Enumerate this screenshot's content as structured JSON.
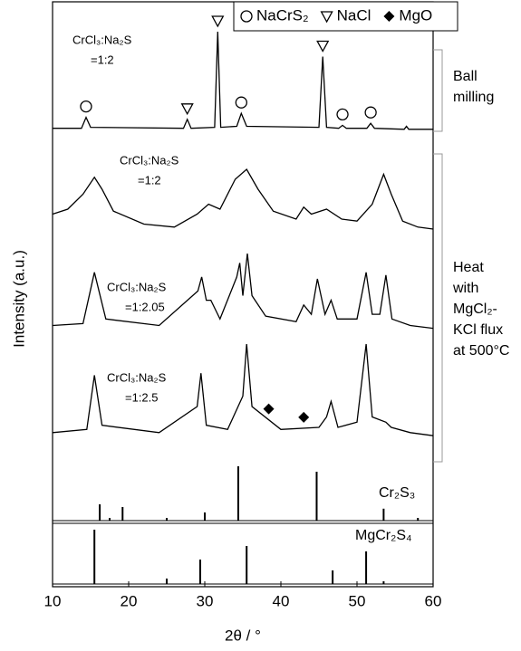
{
  "chart_data": {
    "type": "line",
    "xlabel": "2θ / °",
    "ylabel": "Intensity (a.u.)",
    "xlim": [
      10,
      60
    ],
    "xticks": [
      10,
      20,
      30,
      40,
      50,
      60
    ],
    "color": "#000000",
    "phases": [
      {
        "name": "NaCrS₂",
        "symbol": "circle"
      },
      {
        "name": "NaCl",
        "symbol": "triangle"
      },
      {
        "name": "MgO",
        "symbol": "diamond"
      }
    ],
    "annotations": [
      {
        "lines": [
          "Ball",
          "milling"
        ]
      },
      {
        "lines": [
          "Heat",
          "with",
          "MgCl₂-",
          "KCl flux",
          "at 500°C"
        ]
      }
    ],
    "series": [
      {
        "label": [
          "CrCl₃:Na₂S",
          "=1:2"
        ],
        "kind": "line",
        "x": [
          10,
          13.8,
          14.4,
          15,
          27.2,
          27.7,
          28.2,
          31.3,
          31.7,
          32.1,
          34.2,
          34.8,
          35.5,
          45.0,
          45.5,
          46.0,
          47.6,
          48.1,
          48.6,
          51.3,
          51.8,
          52.3,
          56.2,
          56.5,
          56.8,
          60
        ],
        "values": [
          3,
          3,
          14,
          4,
          3,
          12,
          3,
          4,
          100,
          4,
          5,
          18,
          5,
          4,
          75,
          4,
          3,
          6,
          3,
          3,
          8,
          3,
          2,
          5,
          2,
          2
        ],
        "markers": [
          {
            "symbol": "circle",
            "x": 14.4
          },
          {
            "symbol": "triangle",
            "x": 27.7
          },
          {
            "symbol": "triangle",
            "x": 31.7
          },
          {
            "symbol": "circle",
            "x": 34.8
          },
          {
            "symbol": "triangle",
            "x": 45.5
          },
          {
            "symbol": "circle",
            "x": 48.1
          },
          {
            "symbol": "circle",
            "x": 51.8
          }
        ]
      },
      {
        "label": [
          "CrCl₃:Na₂S",
          "=1:2"
        ],
        "kind": "line",
        "x": [
          10,
          12,
          14,
          15.5,
          16.5,
          18,
          22,
          26,
          29,
          30.5,
          32,
          34,
          35.5,
          37,
          39,
          42,
          43,
          44,
          46,
          48,
          50,
          52,
          53.5,
          54.5,
          56,
          58,
          60
        ],
        "values": [
          35,
          40,
          55,
          72,
          60,
          38,
          25,
          22,
          35,
          45,
          40,
          70,
          80,
          60,
          38,
          30,
          42,
          35,
          40,
          30,
          28,
          45,
          75,
          55,
          28,
          22,
          20
        ]
      },
      {
        "label": [
          "CrCl₃:Na₂S",
          "=1:2.05"
        ],
        "kind": "line",
        "x": [
          10,
          14,
          15.5,
          17,
          24,
          29.1,
          29.6,
          30.2,
          30.8,
          32,
          34.2,
          34.6,
          35,
          35.6,
          36.2,
          38,
          42,
          43,
          44,
          44.8,
          45.8,
          46.6,
          47.4,
          50,
          51.2,
          52,
          53,
          53.8,
          54.6,
          57,
          60
        ],
        "values": [
          18,
          20,
          75,
          25,
          18,
          55,
          70,
          45,
          45,
          25,
          70,
          85,
          50,
          95,
          50,
          28,
          22,
          40,
          30,
          68,
          30,
          45,
          25,
          25,
          75,
          30,
          30,
          72,
          25,
          18,
          15
        ]
      },
      {
        "label": [
          "CrCl₃:Na₂S",
          "=1:2.5"
        ],
        "kind": "line",
        "x": [
          10,
          14.5,
          15.5,
          16.5,
          24,
          29,
          29.5,
          30.2,
          33,
          35,
          35.5,
          36.2,
          40,
          45,
          46,
          46.6,
          47.5,
          50,
          51.2,
          52,
          53.8,
          54.5,
          57,
          60
        ],
        "values": [
          15,
          18,
          70,
          22,
          15,
          40,
          72,
          22,
          18,
          50,
          100,
          40,
          18,
          20,
          30,
          45,
          20,
          25,
          100,
          30,
          25,
          20,
          15,
          12
        ],
        "markers": [
          {
            "symbol": "diamond",
            "x": 38.4
          },
          {
            "symbol": "diamond",
            "x": 43.0
          }
        ]
      },
      {
        "label": [
          "Cr₂S₃"
        ],
        "kind": "stick",
        "x": [
          16.2,
          17.5,
          19.2,
          25,
          30,
          34.4,
          44.7,
          53.5,
          58
        ],
        "values": [
          30,
          5,
          25,
          5,
          15,
          100,
          90,
          22,
          5
        ]
      },
      {
        "label": [
          "MgCr₂S₄"
        ],
        "kind": "stick",
        "x": [
          15.5,
          25,
          29.4,
          35.5,
          46.8,
          51.2,
          53.5
        ],
        "values": [
          100,
          10,
          45,
          70,
          25,
          60,
          5
        ]
      }
    ]
  }
}
